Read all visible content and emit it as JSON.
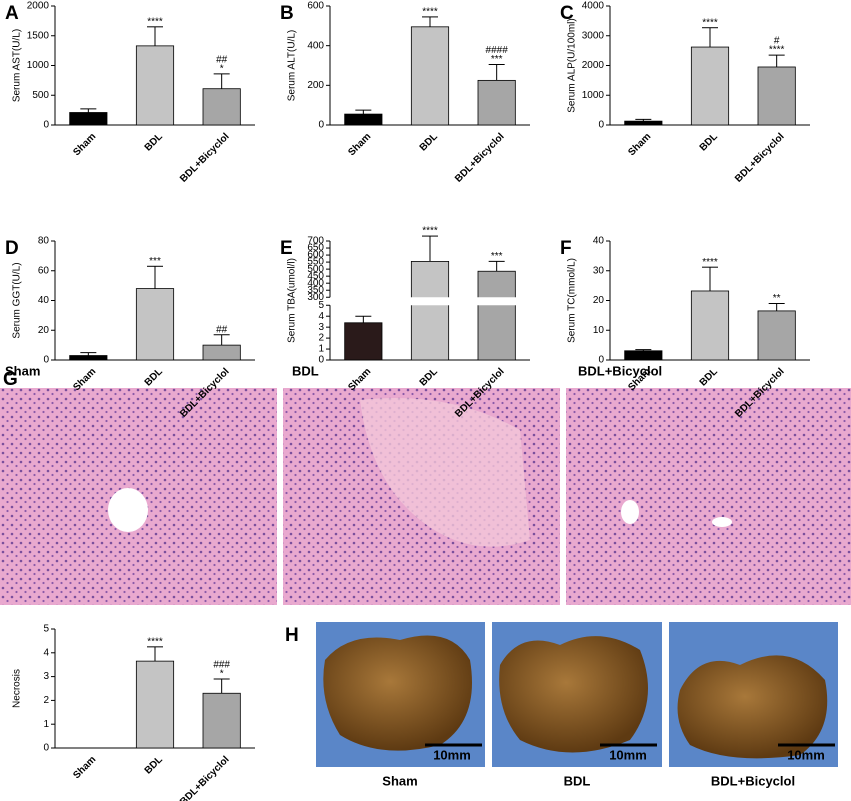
{
  "chart_data": [
    {
      "type": "bar",
      "panel": "A",
      "ylabel": "Serum AST(U/L)",
      "categories": [
        "Sham",
        "BDL",
        "BDL+Bicyclol"
      ],
      "values": [
        210,
        1330,
        610
      ],
      "errors": [
        60,
        320,
        250
      ],
      "colors": [
        "#000000",
        "#c4c4c4",
        "#a6a6a6"
      ],
      "annotations": [
        null,
        [
          "****"
        ],
        [
          "##",
          "*"
        ]
      ],
      "ylim": [
        0,
        2000
      ],
      "yticks": [
        0,
        500,
        1000,
        1500,
        2000
      ]
    },
    {
      "type": "bar",
      "panel": "B",
      "ylabel": "Serum ALT(U/L)",
      "categories": [
        "Sham",
        "BDL",
        "BDL+Bicyclol"
      ],
      "values": [
        55,
        495,
        225
      ],
      "errors": [
        20,
        50,
        80
      ],
      "colors": [
        "#000000",
        "#c4c4c4",
        "#a6a6a6"
      ],
      "annotations": [
        null,
        [
          "****"
        ],
        [
          "####",
          "***"
        ]
      ],
      "ylim": [
        0,
        600
      ],
      "yticks": [
        0,
        200,
        400,
        600
      ]
    },
    {
      "type": "bar",
      "panel": "C",
      "ylabel": "Serum ALP(U/100ml)",
      "categories": [
        "Sham",
        "BDL",
        "BDL+Bicyclol"
      ],
      "values": [
        130,
        2620,
        1950
      ],
      "errors": [
        60,
        650,
        400
      ],
      "colors": [
        "#000000",
        "#c4c4c4",
        "#a6a6a6"
      ],
      "annotations": [
        null,
        [
          "****"
        ],
        [
          "#",
          "****"
        ]
      ],
      "ylim": [
        0,
        4000
      ],
      "yticks": [
        0,
        1000,
        2000,
        3000,
        4000
      ]
    },
    {
      "type": "bar",
      "panel": "D",
      "ylabel": "Serum GGT(U/L)",
      "categories": [
        "Sham",
        "BDL",
        "BDL+Bicyclol"
      ],
      "values": [
        3,
        48,
        10
      ],
      "errors": [
        2,
        15,
        7
      ],
      "colors": [
        "#000000",
        "#c4c4c4",
        "#a6a6a6"
      ],
      "annotations": [
        null,
        [
          "***"
        ],
        [
          "##"
        ]
      ],
      "ylim": [
        0,
        80
      ],
      "yticks": [
        0,
        20,
        40,
        60,
        80
      ]
    },
    {
      "type": "bar",
      "panel": "E",
      "ylabel": "Serum TBA(umol/l)",
      "categories": [
        "Sham",
        "BDL",
        "BDL+Bicyclol"
      ],
      "values": [
        3.4,
        555,
        485
      ],
      "errors": [
        0.6,
        180,
        70
      ],
      "colors": [
        "#2a1a1a",
        "#c4c4c4",
        "#a6a6a6"
      ],
      "annotations": [
        null,
        [
          "****"
        ],
        [
          "***"
        ]
      ],
      "ylim": [
        0,
        5
      ],
      "yticks": [
        0,
        1,
        2,
        3,
        4,
        5
      ],
      "break": {
        "ylim": [
          300,
          700
        ],
        "yticks": [
          300,
          350,
          400,
          450,
          500,
          550,
          600,
          650,
          700
        ]
      }
    },
    {
      "type": "bar",
      "panel": "F",
      "ylabel": "Serum TC(mmol/L)",
      "categories": [
        "Sham",
        "BDL",
        "BDL+Bicyclol"
      ],
      "values": [
        3.1,
        23.2,
        16.5
      ],
      "errors": [
        0.4,
        8,
        2.5
      ],
      "colors": [
        "#000000",
        "#c4c4c4",
        "#a6a6a6"
      ],
      "annotations": [
        null,
        [
          "****"
        ],
        [
          "**"
        ]
      ],
      "ylim": [
        0,
        40
      ],
      "yticks": [
        0,
        10,
        20,
        30,
        40
      ]
    },
    {
      "type": "bar",
      "ylabel": "Necrosis",
      "categories": [
        "Sham",
        "BDL",
        "BDL+Bicyclol"
      ],
      "values": [
        0,
        3.65,
        2.3
      ],
      "errors": [
        0,
        0.6,
        0.6
      ],
      "colors": [
        "#000000",
        "#c4c4c4",
        "#a6a6a6"
      ],
      "annotations": [
        null,
        [
          "****"
        ],
        [
          "###",
          "*"
        ]
      ],
      "ylim": [
        0,
        5
      ],
      "yticks": [
        0,
        1,
        2,
        3,
        4,
        5
      ]
    }
  ],
  "histology": {
    "panel": "G",
    "labels": [
      "Sham",
      "BDL",
      "BDL+Bicyclol"
    ]
  },
  "gross": {
    "panel": "H",
    "labels": [
      "Sham",
      "BDL",
      "BDL+Bicyclol"
    ],
    "scale_bar": "10mm"
  }
}
